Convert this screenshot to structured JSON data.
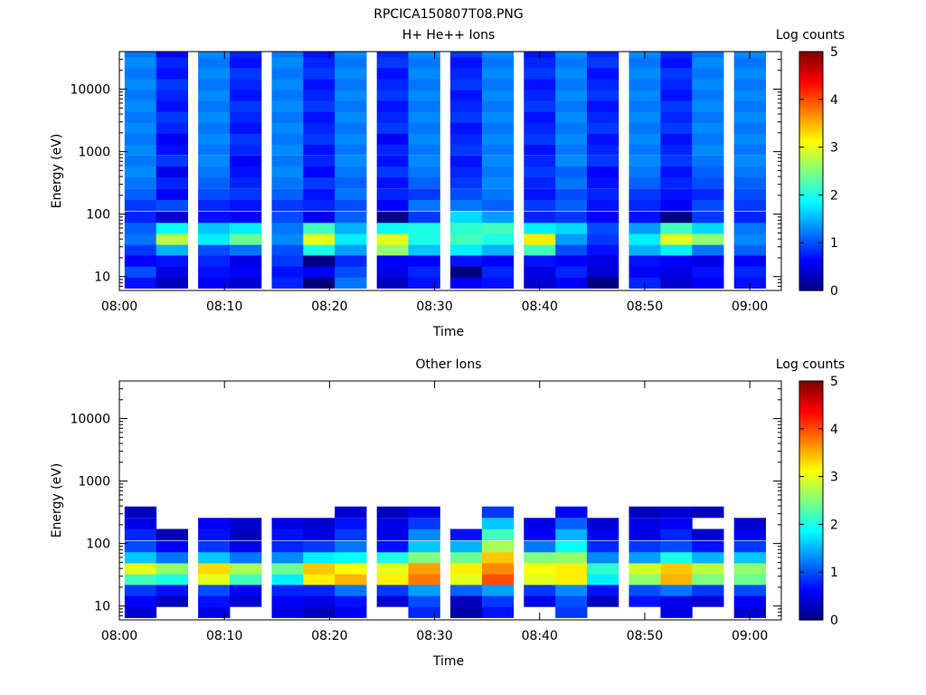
{
  "figure": {
    "title": "RPCICA150807T08.PNG"
  },
  "colorbar": {
    "label": "Log counts",
    "range": [
      0,
      5
    ],
    "ticks": [
      "0",
      "1",
      "2",
      "3",
      "4",
      "5"
    ],
    "colors": [
      "#000080",
      "#0000ff",
      "#0080ff",
      "#00ffff",
      "#80ff80",
      "#ffff00",
      "#ff8000",
      "#ff0000",
      "#800000"
    ]
  },
  "chart_data": [
    {
      "type": "heatmap",
      "title": "H+ He++ Ions",
      "xlabel": "Time",
      "ylabel": "Energy (eV)",
      "yscale": "log",
      "ylim": [
        6,
        40000
      ],
      "xlim": [
        "08:00",
        "09:03"
      ],
      "xticks": [
        "08:00",
        "08:10",
        "08:20",
        "08:30",
        "08:40",
        "08:50",
        "09:00"
      ],
      "yticks": [
        "10",
        "100",
        "1000",
        "10000"
      ],
      "columns": [
        "08:02",
        "08:05",
        "08:09",
        "08:12",
        "08:16",
        "08:19",
        "08:22",
        "08:26",
        "08:29",
        "08:33",
        "08:36",
        "08:40",
        "08:43",
        "08:46",
        "08:50",
        "08:53",
        "08:56",
        "09:00"
      ],
      "energy_bands_eV": [
        8,
        12,
        18,
        27,
        40,
        60,
        90,
        140,
        210,
        320,
        480,
        720,
        1100,
        1600,
        2400,
        3600,
        5400,
        8100,
        12000,
        18000,
        27000,
        40000
      ],
      "z_log_counts": [
        [
          0.7,
          0.3,
          0.6,
          0.4,
          0.8,
          0.0,
          1.2,
          0.3,
          0.7,
          0.6,
          0.7,
          0.4,
          0.6,
          0.0,
          0.8,
          0.4,
          0.6,
          0.7
        ],
        [
          1.0,
          0.5,
          0.7,
          0.6,
          0.7,
          0.6,
          1.0,
          0.5,
          0.8,
          0.0,
          0.8,
          0.5,
          0.8,
          0.4,
          0.6,
          0.5,
          0.7,
          0.8
        ],
        [
          0.6,
          0.7,
          0.8,
          0.5,
          0.9,
          0.0,
          0.8,
          0.6,
          0.6,
          0.7,
          0.6,
          0.7,
          0.6,
          0.5,
          0.7,
          0.6,
          0.5,
          0.6
        ],
        [
          0.9,
          1.5,
          1.0,
          1.2,
          1.0,
          2.0,
          1.4,
          2.6,
          1.6,
          1.8,
          1.5,
          2.2,
          1.0,
          0.7,
          1.5,
          1.8,
          1.2,
          1.1
        ],
        [
          1.2,
          2.8,
          1.8,
          2.4,
          1.3,
          3.0,
          1.8,
          3.0,
          2.0,
          2.2,
          2.0,
          3.2,
          1.4,
          0.9,
          1.8,
          3.0,
          2.6,
          1.3
        ],
        [
          1.1,
          1.9,
          1.6,
          1.8,
          1.2,
          2.2,
          1.5,
          1.9,
          2.0,
          2.1,
          2.2,
          1.8,
          1.7,
          1.0,
          1.4,
          2.2,
          1.7,
          1.2
        ],
        [
          0.8,
          0.4,
          0.7,
          0.6,
          1.0,
          0.5,
          1.1,
          0.0,
          0.9,
          1.7,
          1.4,
          0.8,
          0.9,
          0.6,
          0.7,
          0.0,
          0.9,
          0.8
        ],
        [
          0.9,
          1.0,
          0.8,
          0.7,
          0.9,
          0.8,
          1.0,
          0.6,
          1.2,
          1.2,
          1.1,
          0.9,
          1.1,
          0.7,
          0.8,
          0.6,
          1.0,
          0.9
        ],
        [
          1.1,
          0.6,
          1.0,
          0.9,
          1.1,
          0.7,
          1.2,
          0.8,
          0.9,
          1.0,
          1.2,
          0.7,
          1.0,
          0.8,
          0.9,
          0.7,
          0.8,
          1.0
        ],
        [
          1.2,
          0.8,
          1.1,
          0.8,
          1.2,
          0.9,
          1.1,
          0.7,
          1.1,
          0.9,
          1.3,
          0.8,
          1.2,
          0.7,
          1.1,
          0.8,
          1.0,
          1.1
        ],
        [
          1.3,
          0.5,
          1.2,
          0.7,
          1.3,
          0.6,
          1.2,
          0.9,
          1.2,
          0.8,
          1.2,
          0.9,
          1.1,
          0.6,
          1.2,
          0.7,
          1.1,
          1.2
        ],
        [
          1.2,
          0.9,
          1.3,
          0.6,
          1.2,
          0.8,
          1.3,
          0.7,
          1.3,
          0.7,
          1.3,
          0.8,
          1.3,
          0.9,
          1.3,
          0.9,
          1.2,
          1.3
        ],
        [
          1.3,
          0.7,
          1.2,
          0.8,
          1.3,
          0.7,
          1.2,
          0.8,
          1.2,
          0.9,
          1.2,
          0.7,
          1.2,
          0.8,
          1.2,
          0.8,
          1.3,
          1.2
        ],
        [
          1.2,
          0.6,
          1.3,
          0.9,
          1.2,
          0.9,
          1.3,
          0.6,
          1.3,
          0.8,
          1.3,
          0.9,
          1.3,
          0.7,
          1.3,
          0.7,
          1.2,
          1.3
        ],
        [
          1.3,
          0.8,
          1.2,
          0.7,
          1.3,
          0.8,
          1.2,
          0.9,
          1.2,
          0.7,
          1.2,
          0.8,
          1.2,
          0.9,
          1.2,
          0.9,
          1.3,
          1.2
        ],
        [
          1.2,
          0.9,
          1.3,
          0.8,
          1.2,
          0.7,
          1.3,
          0.8,
          1.3,
          0.9,
          1.3,
          0.7,
          1.3,
          0.8,
          1.3,
          0.8,
          1.2,
          1.3
        ],
        [
          1.3,
          0.7,
          1.2,
          0.9,
          1.3,
          0.9,
          1.2,
          0.7,
          1.2,
          0.8,
          1.2,
          0.9,
          1.2,
          0.7,
          1.2,
          0.9,
          1.3,
          1.2
        ],
        [
          1.2,
          0.8,
          1.3,
          0.7,
          1.2,
          0.8,
          1.3,
          0.9,
          1.3,
          0.7,
          1.3,
          0.8,
          1.3,
          0.9,
          1.3,
          0.7,
          1.2,
          1.3
        ],
        [
          1.3,
          0.9,
          1.2,
          0.8,
          1.3,
          0.7,
          1.2,
          0.8,
          1.2,
          0.9,
          1.2,
          0.7,
          1.2,
          0.8,
          1.2,
          0.8,
          1.3,
          1.2
        ],
        [
          1.2,
          0.7,
          1.3,
          0.9,
          1.2,
          0.9,
          1.3,
          0.7,
          1.3,
          0.8,
          1.3,
          0.9,
          1.3,
          0.7,
          1.3,
          0.9,
          1.2,
          1.3
        ],
        [
          1.3,
          0.8,
          1.2,
          0.7,
          1.3,
          0.8,
          1.2,
          0.9,
          1.2,
          0.7,
          1.2,
          0.8,
          1.2,
          0.9,
          1.2,
          0.7,
          1.3,
          1.2
        ],
        [
          1.2,
          0.6,
          1.3,
          0.8,
          1.2,
          0.7,
          1.3,
          0.8,
          1.3,
          0.9,
          1.3,
          0.7,
          1.3,
          0.8,
          1.3,
          0.8,
          1.2,
          1.3
        ]
      ]
    },
    {
      "type": "heatmap",
      "title": "Other Ions",
      "xlabel": "Time",
      "ylabel": "Energy (eV)",
      "yscale": "log",
      "ylim": [
        6,
        40000
      ],
      "xlim": [
        "08:00",
        "09:03"
      ],
      "xticks": [
        "08:00",
        "08:10",
        "08:20",
        "08:30",
        "08:40",
        "08:50",
        "09:00"
      ],
      "yticks": [
        "10",
        "100",
        "1000",
        "10000"
      ],
      "columns": [
        "08:02",
        "08:05",
        "08:09",
        "08:12",
        "08:16",
        "08:19",
        "08:22",
        "08:26",
        "08:29",
        "08:33",
        "08:36",
        "08:40",
        "08:43",
        "08:46",
        "08:50",
        "08:53",
        "08:56",
        "09:00"
      ],
      "energy_bands_eV": [
        8,
        12,
        18,
        27,
        40,
        60,
        90,
        140,
        210,
        320
      ],
      "z_log_counts": [
        [
          0.4,
          null,
          0.5,
          null,
          0.5,
          0.3,
          0.6,
          null,
          0.8,
          0.2,
          0.7,
          null,
          0.9,
          null,
          null,
          0.5,
          null,
          0.4
        ],
        [
          0.6,
          0.3,
          0.7,
          0.4,
          0.6,
          0.5,
          0.7,
          0.4,
          1.0,
          0.3,
          0.9,
          0.5,
          1.0,
          0.3,
          0.7,
          0.5,
          0.4,
          0.6
        ],
        [
          0.9,
          0.7,
          1.0,
          0.6,
          0.8,
          0.8,
          1.2,
          0.9,
          1.4,
          1.1,
          1.4,
          0.9,
          1.3,
          0.7,
          1.0,
          1.2,
          0.9,
          1.0
        ],
        [
          2.2,
          2.0,
          3.0,
          2.2,
          1.8,
          3.2,
          3.5,
          3.2,
          3.8,
          3.0,
          4.0,
          3.0,
          3.2,
          1.8,
          2.6,
          3.5,
          2.5,
          2.4
        ],
        [
          3.0,
          2.6,
          3.3,
          2.7,
          2.4,
          3.4,
          3.1,
          3.0,
          3.6,
          3.2,
          3.7,
          3.1,
          3.2,
          2.1,
          2.9,
          3.4,
          2.8,
          2.6
        ],
        [
          1.6,
          1.2,
          1.6,
          1.2,
          1.3,
          1.8,
          1.9,
          2.0,
          2.5,
          2.4,
          3.4,
          2.5,
          2.6,
          1.3,
          1.4,
          2.0,
          1.5,
          1.6
        ],
        [
          1.0,
          0.6,
          0.9,
          0.5,
          0.8,
          0.9,
          1.2,
          0.7,
          1.6,
          1.5,
          2.7,
          1.2,
          1.9,
          0.8,
          0.9,
          1.0,
          0.7,
          0.9
        ],
        [
          0.8,
          0.3,
          0.7,
          0.3,
          0.7,
          0.5,
          0.9,
          0.5,
          1.3,
          0.7,
          2.2,
          0.6,
          1.5,
          0.6,
          0.5,
          0.8,
          0.4,
          0.6
        ],
        [
          0.5,
          null,
          0.6,
          0.4,
          0.5,
          0.4,
          0.7,
          0.5,
          0.9,
          null,
          1.6,
          0.5,
          1.1,
          0.4,
          0.5,
          0.6,
          null,
          0.4
        ],
        [
          0.3,
          null,
          null,
          null,
          null,
          null,
          0.4,
          0.3,
          0.5,
          null,
          0.9,
          null,
          0.6,
          null,
          0.3,
          0.4,
          0.3,
          null
        ]
      ]
    }
  ]
}
